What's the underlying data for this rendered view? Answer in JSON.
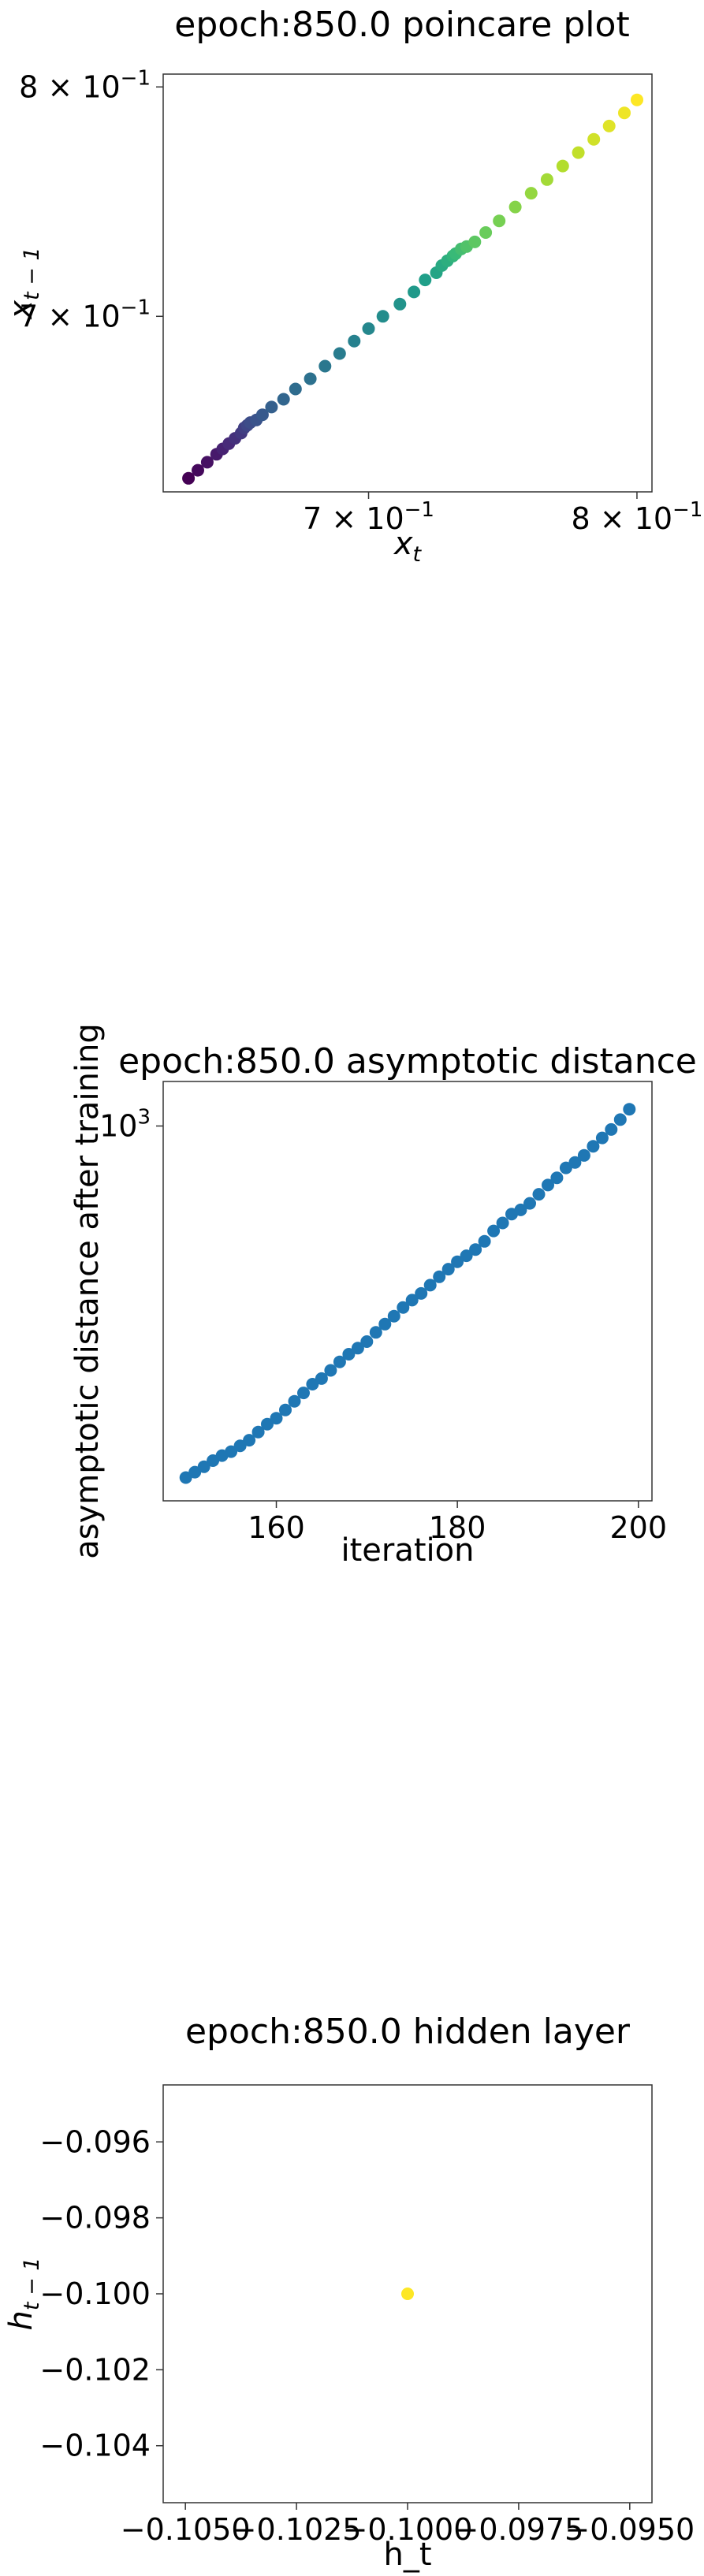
{
  "chart_data": [
    {
      "type": "scatter",
      "title": "epoch:850.0 poincare plot",
      "xlabel": "x",
      "xlabel_sub": "t",
      "ylabel": "x",
      "ylabel_sub": "t − 1",
      "xscale": "log",
      "yscale": "log",
      "xlim": [
        0.632,
        0.806
      ],
      "ylim": [
        0.632,
        0.806
      ],
      "colormap": "viridis",
      "grid": false,
      "x_ticks": [
        {
          "value": 0.7,
          "base": "7 × 10",
          "exp": "−1"
        },
        {
          "value": 0.8,
          "base": "8 × 10",
          "exp": "−1"
        }
      ],
      "y_ticks": [
        {
          "value": 0.7,
          "base": "7 × 10",
          "exp": "−1"
        },
        {
          "value": 0.8,
          "base": "8 × 10",
          "exp": "−1"
        }
      ],
      "points": [
        [
          0.64,
          0.637
        ],
        [
          0.643,
          0.64
        ],
        [
          0.646,
          0.643
        ],
        [
          0.649,
          0.646
        ],
        [
          0.651,
          0.648
        ],
        [
          0.653,
          0.65
        ],
        [
          0.655,
          0.652
        ],
        [
          0.657,
          0.654
        ],
        [
          0.658,
          0.656
        ],
        [
          0.659,
          0.657
        ],
        [
          0.66,
          0.658
        ],
        [
          0.662,
          0.659
        ],
        [
          0.664,
          0.661
        ],
        [
          0.667,
          0.664
        ],
        [
          0.671,
          0.667
        ],
        [
          0.675,
          0.671
        ],
        [
          0.68,
          0.675
        ],
        [
          0.685,
          0.68
        ],
        [
          0.69,
          0.685
        ],
        [
          0.695,
          0.69
        ],
        [
          0.7,
          0.695
        ],
        [
          0.705,
          0.7
        ],
        [
          0.711,
          0.705
        ],
        [
          0.716,
          0.71
        ],
        [
          0.72,
          0.715
        ],
        [
          0.724,
          0.718
        ],
        [
          0.726,
          0.721
        ],
        [
          0.728,
          0.723
        ],
        [
          0.73,
          0.725
        ],
        [
          0.731,
          0.726
        ],
        [
          0.733,
          0.728
        ],
        [
          0.735,
          0.729
        ],
        [
          0.738,
          0.731
        ],
        [
          0.742,
          0.735
        ],
        [
          0.747,
          0.74
        ],
        [
          0.753,
          0.746
        ],
        [
          0.759,
          0.752
        ],
        [
          0.765,
          0.758
        ],
        [
          0.771,
          0.764
        ],
        [
          0.777,
          0.77
        ],
        [
          0.783,
          0.776
        ],
        [
          0.789,
          0.782
        ],
        [
          0.795,
          0.788
        ],
        [
          0.8,
          0.794
        ]
      ]
    },
    {
      "type": "scatter",
      "title": "epoch:850.0 asymptotic distance",
      "xlabel": "iteration",
      "ylabel": "asymptotic distance after training",
      "xscale": "linear",
      "yscale": "log",
      "xlim": [
        147.5,
        201.5
      ],
      "ylim": [
        175,
        1230
      ],
      "color": "#1f77b4",
      "grid": false,
      "x_ticks": [
        {
          "value": 160,
          "label": "160"
        },
        {
          "value": 180,
          "label": "180"
        },
        {
          "value": 200,
          "label": "200"
        }
      ],
      "y_ticks": [
        {
          "value": 1000,
          "base": "10",
          "exp": "3"
        }
      ],
      "points": [
        [
          150,
          195
        ],
        [
          151,
          200
        ],
        [
          152,
          205
        ],
        [
          153,
          211
        ],
        [
          154,
          216
        ],
        [
          155,
          220
        ],
        [
          156,
          226
        ],
        [
          157,
          232
        ],
        [
          158,
          241
        ],
        [
          159,
          250
        ],
        [
          160,
          257
        ],
        [
          161,
          267
        ],
        [
          162,
          278
        ],
        [
          163,
          289
        ],
        [
          164,
          301
        ],
        [
          165,
          309
        ],
        [
          166,
          321
        ],
        [
          167,
          334
        ],
        [
          168,
          346
        ],
        [
          169,
          356
        ],
        [
          170,
          367
        ],
        [
          171,
          383
        ],
        [
          172,
          398
        ],
        [
          173,
          413
        ],
        [
          174,
          430
        ],
        [
          175,
          445
        ],
        [
          176,
          459
        ],
        [
          177,
          477
        ],
        [
          178,
          496
        ],
        [
          179,
          514
        ],
        [
          180,
          532
        ],
        [
          181,
          547
        ],
        [
          182,
          563
        ],
        [
          183,
          585
        ],
        [
          184,
          614
        ],
        [
          185,
          637
        ],
        [
          186,
          664
        ],
        [
          187,
          677
        ],
        [
          188,
          698
        ],
        [
          189,
          728
        ],
        [
          190,
          760
        ],
        [
          191,
          786
        ],
        [
          192,
          823
        ],
        [
          193,
          844
        ],
        [
          194,
          872
        ],
        [
          195,
          910
        ],
        [
          196,
          946
        ],
        [
          197,
          984
        ],
        [
          198,
          1030
        ],
        [
          199,
          1081
        ]
      ]
    },
    {
      "type": "scatter",
      "title": "epoch:850.0 hidden layer",
      "xlabel": "h_t",
      "ylabel": "h",
      "ylabel_sub": "t − 1",
      "xscale": "linear",
      "yscale": "linear",
      "xlim": [
        -0.1055,
        -0.0945
      ],
      "ylim": [
        -0.1055,
        -0.0945
      ],
      "color": "#fde725",
      "grid": false,
      "x_ticks": [
        {
          "value": -0.105,
          "label": "−0.1050"
        },
        {
          "value": -0.1025,
          "label": "−0.1025"
        },
        {
          "value": -0.1,
          "label": "−0.1000"
        },
        {
          "value": -0.0975,
          "label": "−0.0975"
        },
        {
          "value": -0.095,
          "label": "−0.0950"
        }
      ],
      "y_ticks": [
        {
          "value": -0.104,
          "label": "−0.104"
        },
        {
          "value": -0.102,
          "label": "−0.102"
        },
        {
          "value": -0.1,
          "label": "−0.100"
        },
        {
          "value": -0.098,
          "label": "−0.098"
        },
        {
          "value": -0.096,
          "label": "−0.096"
        }
      ],
      "points": [
        [
          -0.1,
          -0.1
        ]
      ]
    }
  ]
}
